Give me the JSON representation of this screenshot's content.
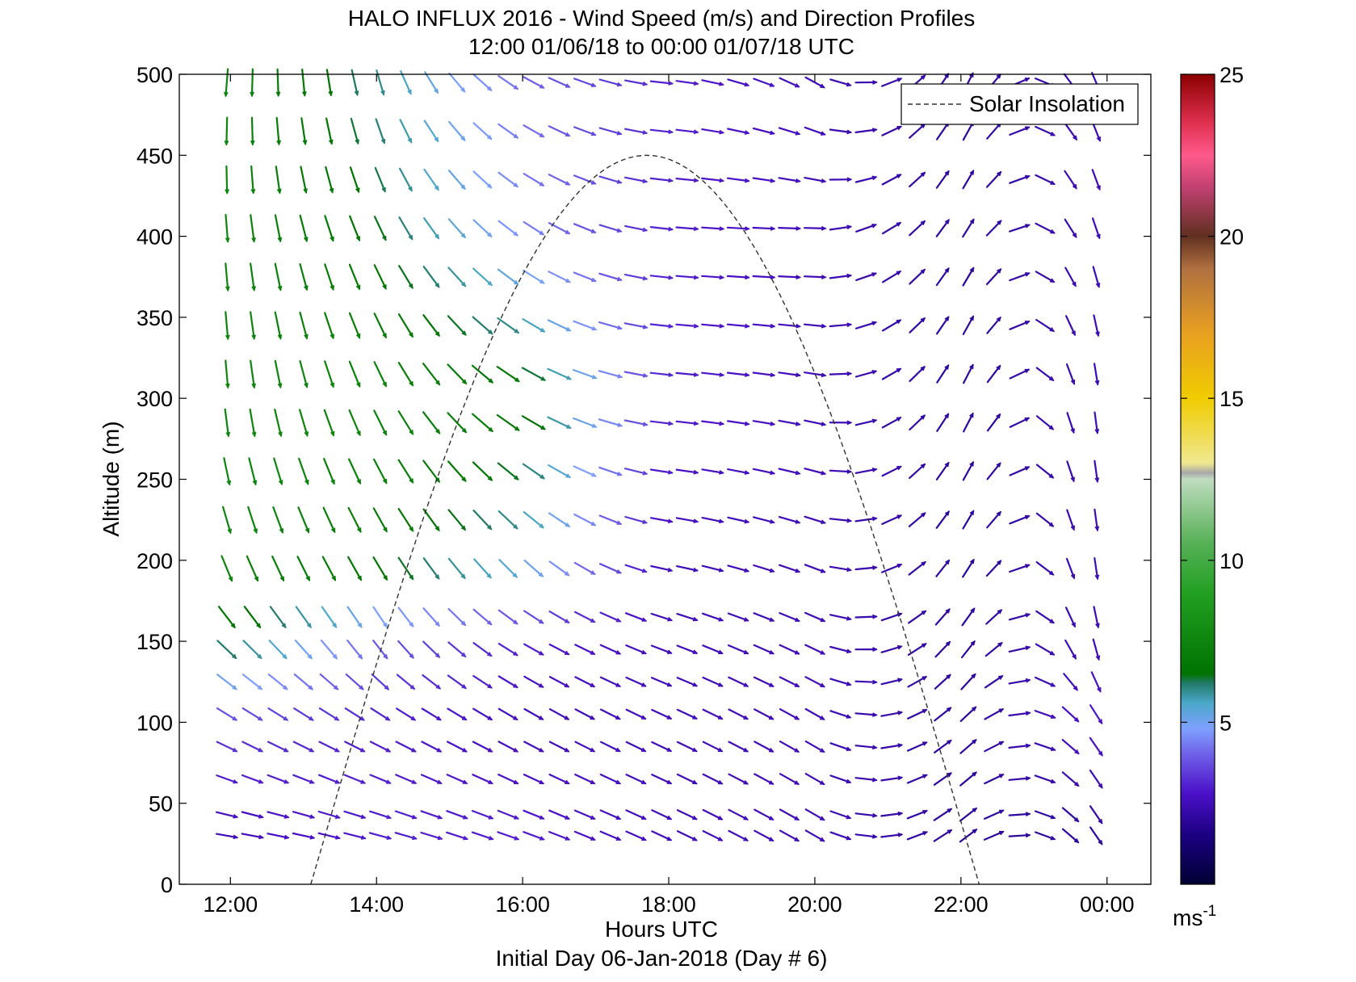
{
  "chart_data": {
    "type": "wind-barb",
    "title": "HALO INFLUX 2016 - Wind Speed (m/s) and Direction Profiles",
    "subtitle": "12:00 01/06/18 to 00:00 01/07/18  UTC",
    "xlabel": "Hours UTC",
    "xlabel2": "Initial Day 06-Jan-2018 (Day # 6)",
    "ylabel": "Altitude (m)",
    "xlim_hours": [
      11.3,
      24.6
    ],
    "ylim": [
      0,
      500
    ],
    "x_ticks": [
      {
        "value": 12,
        "label": "12:00"
      },
      {
        "value": 14,
        "label": "14:00"
      },
      {
        "value": 16,
        "label": "16:00"
      },
      {
        "value": 18,
        "label": "18:00"
      },
      {
        "value": 20,
        "label": "20:00"
      },
      {
        "value": 22,
        "label": "22:00"
      },
      {
        "value": 24,
        "label": "00:00"
      }
    ],
    "y_ticks": [
      0,
      50,
      100,
      150,
      200,
      250,
      300,
      350,
      400,
      450,
      500
    ],
    "legend": {
      "label": "Solar Insolation",
      "placement": "top-right",
      "style": "dashed black"
    },
    "solar_insolation": {
      "start_hour": 13.1,
      "peak_hour": 17.7,
      "end_hour": 22.25,
      "peak_altitude": 450
    },
    "colorbar": {
      "label": "ms-1",
      "unit_text": "ms",
      "unit_exp": "-1",
      "range": [
        0,
        25
      ],
      "ticks": [
        5,
        10,
        15,
        20,
        25
      ],
      "colors": [
        {
          "v": 0,
          "c": "#000033"
        },
        {
          "v": 1.5,
          "c": "#1a0080"
        },
        {
          "v": 2.8,
          "c": "#4b10c8"
        },
        {
          "v": 4,
          "c": "#6f60e8"
        },
        {
          "v": 4.8,
          "c": "#7fa0ff"
        },
        {
          "v": 5.6,
          "c": "#4aa8c8"
        },
        {
          "v": 6.2,
          "c": "#227a6a"
        },
        {
          "v": 6.5,
          "c": "#007300"
        },
        {
          "v": 9,
          "c": "#22a022"
        },
        {
          "v": 10.5,
          "c": "#55b055"
        },
        {
          "v": 12.5,
          "c": "#c0dcc0"
        },
        {
          "v": 12.7,
          "c": "#a8a8a8"
        },
        {
          "v": 13,
          "c": "#f0e890"
        },
        {
          "v": 15,
          "c": "#f0cc00"
        },
        {
          "v": 17,
          "c": "#e8a020"
        },
        {
          "v": 19,
          "c": "#b07040"
        },
        {
          "v": 20,
          "c": "#603020"
        },
        {
          "v": 21.5,
          "c": "#c04070"
        },
        {
          "v": 22.5,
          "c": "#ff5a8c"
        },
        {
          "v": 23.5,
          "c": "#e03050"
        },
        {
          "v": 25,
          "c": "#8b0000"
        }
      ]
    },
    "altitudes": [
      30,
      43,
      65,
      85,
      105,
      125,
      145,
      165,
      195,
      225,
      255,
      285,
      315,
      345,
      375,
      405,
      435,
      465,
      495
    ],
    "profile_times": [
      11.95,
      12.3,
      12.65,
      13.0,
      13.35,
      13.7,
      14.05,
      14.4,
      14.75,
      15.1,
      15.45,
      15.8,
      16.15,
      16.5,
      16.85,
      17.2,
      17.55,
      17.9,
      18.25,
      18.6,
      18.95,
      19.3,
      19.65,
      20.0,
      20.35,
      20.7,
      21.05,
      21.4,
      21.75,
      22.1,
      22.45,
      22.8,
      23.15,
      23.5,
      23.85
    ],
    "wind_note_units": "speed in m/s, direction in degrees (meteorological, wind from)",
    "wind_field": {
      "speed_grid_hours": [
        12,
        14,
        16,
        18,
        20,
        22,
        24
      ],
      "speed_grid_alt": [
        30,
        100,
        150,
        200,
        300,
        400,
        500
      ],
      "speed": [
        [
          2.5,
          3.0,
          3.0,
          2.5,
          2.5,
          2.0,
          2.0
        ],
        [
          3.5,
          3.0,
          2.5,
          2.5,
          2.5,
          2.0,
          3.0
        ],
        [
          6.5,
          4.0,
          3.0,
          2.5,
          2.5,
          2.0,
          2.5
        ],
        [
          7.5,
          7.0,
          5.5,
          2.5,
          2.5,
          2.0,
          2.5
        ],
        [
          7.5,
          7.5,
          7.0,
          3.0,
          2.5,
          2.0,
          2.5
        ],
        [
          7.5,
          6.5,
          4.5,
          3.0,
          2.5,
          2.0,
          2.5
        ],
        [
          7.5,
          6.0,
          4.0,
          3.0,
          2.5,
          2.0,
          2.5
        ]
      ],
      "direction": [
        [
          280,
          285,
          290,
          295,
          300,
          230,
          330
        ],
        [
          300,
          300,
          300,
          295,
          300,
          225,
          330
        ],
        [
          315,
          325,
          300,
          290,
          295,
          215,
          350
        ],
        [
          340,
          330,
          315,
          280,
          290,
          210,
          355
        ],
        [
          355,
          335,
          300,
          275,
          280,
          205,
          355
        ],
        [
          355,
          335,
          305,
          275,
          270,
          210,
          345
        ],
        [
          5,
          345,
          300,
          275,
          300,
          205,
          340
        ]
      ]
    }
  }
}
